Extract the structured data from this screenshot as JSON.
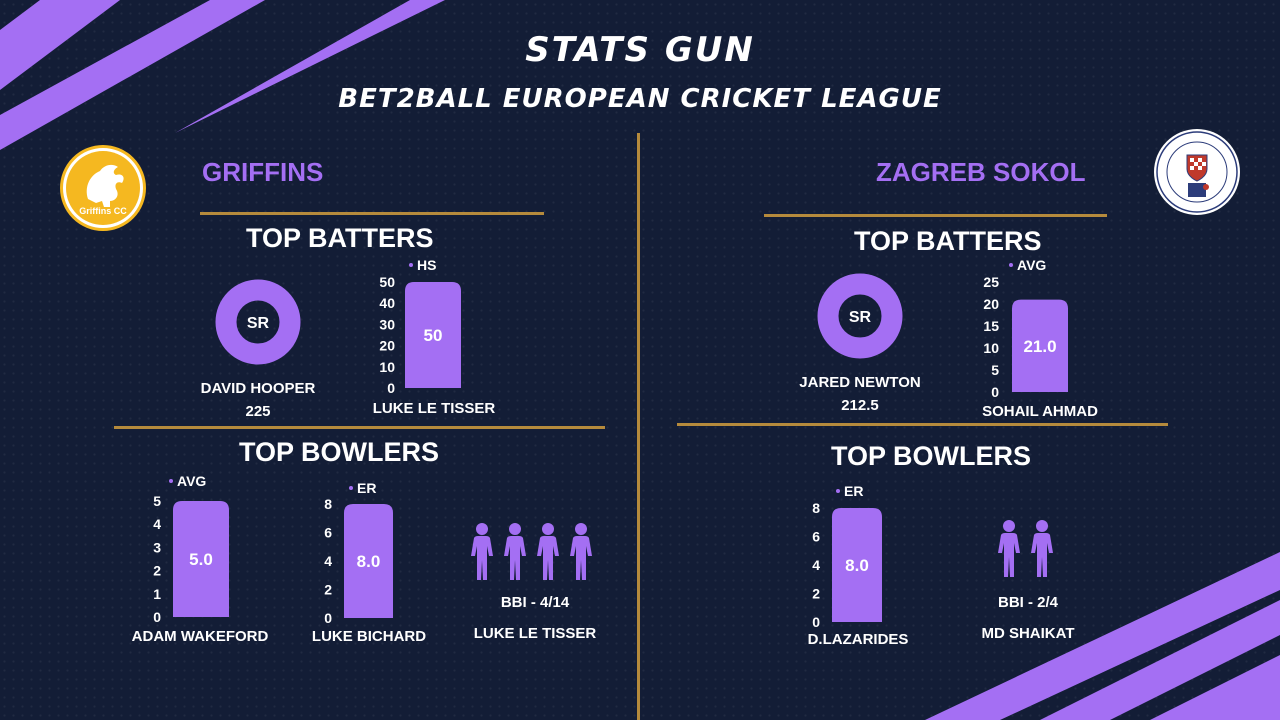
{
  "header": {
    "title": "STATS GUN",
    "subtitle": "BET2BALL EUROPEAN CRICKET LEAGUE"
  },
  "colors": {
    "background": "#131d36",
    "accent": "#a46ff3",
    "divider": "#b58a3c",
    "logo_gold": "#f5b820"
  },
  "left": {
    "team": "GRIFFINS",
    "logo_text": "Griffins CC",
    "top_batters": {
      "heading": "TOP BATTERS",
      "donut": {
        "label": "SR",
        "player": "DAVID HOOPER",
        "value": "225"
      },
      "bar": {
        "player": "LUKE LE TISSER"
      }
    },
    "top_bowlers": {
      "heading": "TOP BOWLERS",
      "bar1": {
        "player": "ADAM WAKEFORD"
      },
      "bar2": {
        "player": "LUKE BICHARD"
      },
      "figures": {
        "text": "BBI - 4/14",
        "player": "LUKE LE TISSER",
        "icon": "person-icon",
        "count": 4
      }
    }
  },
  "right": {
    "team": "ZAGREB SOKOL",
    "top_batters": {
      "heading": "TOP BATTERS",
      "donut": {
        "label": "SR",
        "player": "JARED NEWTON",
        "value": "212.5"
      },
      "bar": {
        "player": "SOHAIL AHMAD"
      }
    },
    "top_bowlers": {
      "heading": "TOP BOWLERS",
      "bar1": {
        "player": "D.LAZARIDES"
      },
      "figures": {
        "text": "BBI - 2/4",
        "player": "MD SHAIKAT",
        "icon": "person-icon",
        "count": 2
      }
    }
  },
  "chart_data": [
    {
      "type": "bar",
      "legend": "HS",
      "categories": [
        "LUKE LE TISSER"
      ],
      "values": [
        50
      ],
      "value_label": "50",
      "ylim": [
        0,
        50
      ],
      "ticks": [
        "0",
        "10",
        "20",
        "30",
        "40",
        "50"
      ]
    },
    {
      "type": "bar",
      "legend": "AVG",
      "categories": [
        "SOHAIL AHMAD"
      ],
      "values": [
        21.0
      ],
      "value_label": "21.0",
      "ylim": [
        0,
        25
      ],
      "ticks": [
        "0",
        "5",
        "10",
        "15",
        "20",
        "25"
      ]
    },
    {
      "type": "bar",
      "legend": "AVG",
      "categories": [
        "ADAM WAKEFORD"
      ],
      "values": [
        5.0
      ],
      "value_label": "5.0",
      "ylim": [
        0,
        5
      ],
      "ticks": [
        "0",
        "1",
        "2",
        "3",
        "4",
        "5"
      ]
    },
    {
      "type": "bar",
      "legend": "ER",
      "categories": [
        "LUKE BICHARD"
      ],
      "values": [
        8.0
      ],
      "value_label": "8.0",
      "ylim": [
        0,
        8
      ],
      "ticks": [
        "0",
        "2",
        "4",
        "6",
        "8"
      ]
    },
    {
      "type": "bar",
      "legend": "ER",
      "categories": [
        "D.LAZARIDES"
      ],
      "values": [
        8.0
      ],
      "value_label": "8.0",
      "ylim": [
        0,
        8
      ],
      "ticks": [
        "0",
        "2",
        "4",
        "6",
        "8"
      ]
    }
  ]
}
